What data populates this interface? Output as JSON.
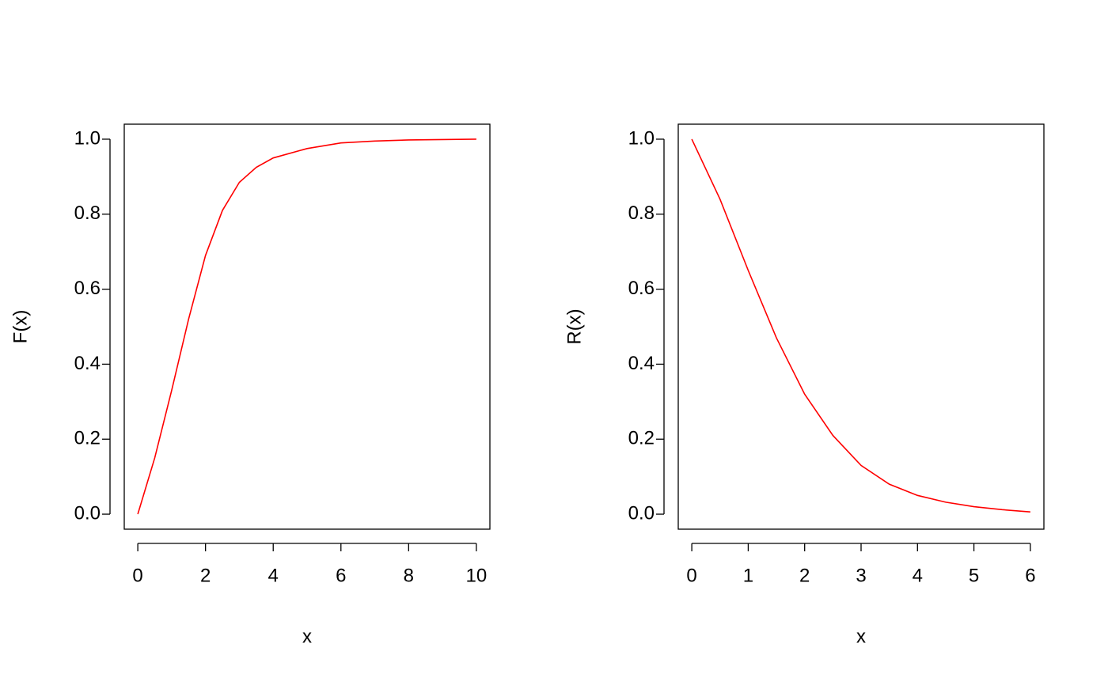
{
  "chart_data": [
    {
      "type": "line",
      "xlabel": "x",
      "ylabel": "F(x)",
      "x": [
        0,
        0.5,
        1,
        1.5,
        2,
        2.5,
        3,
        3.5,
        4,
        5,
        6,
        7,
        8,
        9,
        10
      ],
      "series": [
        {
          "color": "#ff0000",
          "values": [
            0,
            0.15,
            0.33,
            0.52,
            0.69,
            0.81,
            0.885,
            0.925,
            0.95,
            0.975,
            0.99,
            0.995,
            0.998,
            0.999,
            1.0
          ]
        }
      ],
      "xlim": [
        -0.4,
        10.4
      ],
      "ylim": [
        -0.04,
        1.04
      ],
      "xticks": [
        0,
        2,
        4,
        6,
        8,
        10
      ],
      "yticks": [
        {
          "value": 0,
          "label": "0.0"
        },
        0.2,
        0.4,
        0.6,
        0.8,
        {
          "value": 1,
          "label": "1.0"
        }
      ]
    },
    {
      "type": "line",
      "xlabel": "x",
      "ylabel": "R(x)",
      "x": [
        0,
        0.5,
        1,
        1.5,
        2,
        2.5,
        3,
        3.5,
        4,
        4.5,
        5,
        5.5,
        6
      ],
      "series": [
        {
          "color": "#ff0000",
          "values": [
            1.0,
            0.84,
            0.65,
            0.47,
            0.32,
            0.21,
            0.13,
            0.08,
            0.05,
            0.032,
            0.02,
            0.012,
            0.006
          ]
        }
      ],
      "xlim": [
        -0.24,
        6.24
      ],
      "ylim": [
        -0.04,
        1.04
      ],
      "xticks": [
        0,
        1,
        2,
        3,
        4,
        5,
        6
      ],
      "yticks": [
        {
          "value": 0,
          "label": "0.0"
        },
        0.2,
        0.4,
        0.6,
        0.8,
        {
          "value": 1,
          "label": "1.0"
        }
      ]
    }
  ]
}
